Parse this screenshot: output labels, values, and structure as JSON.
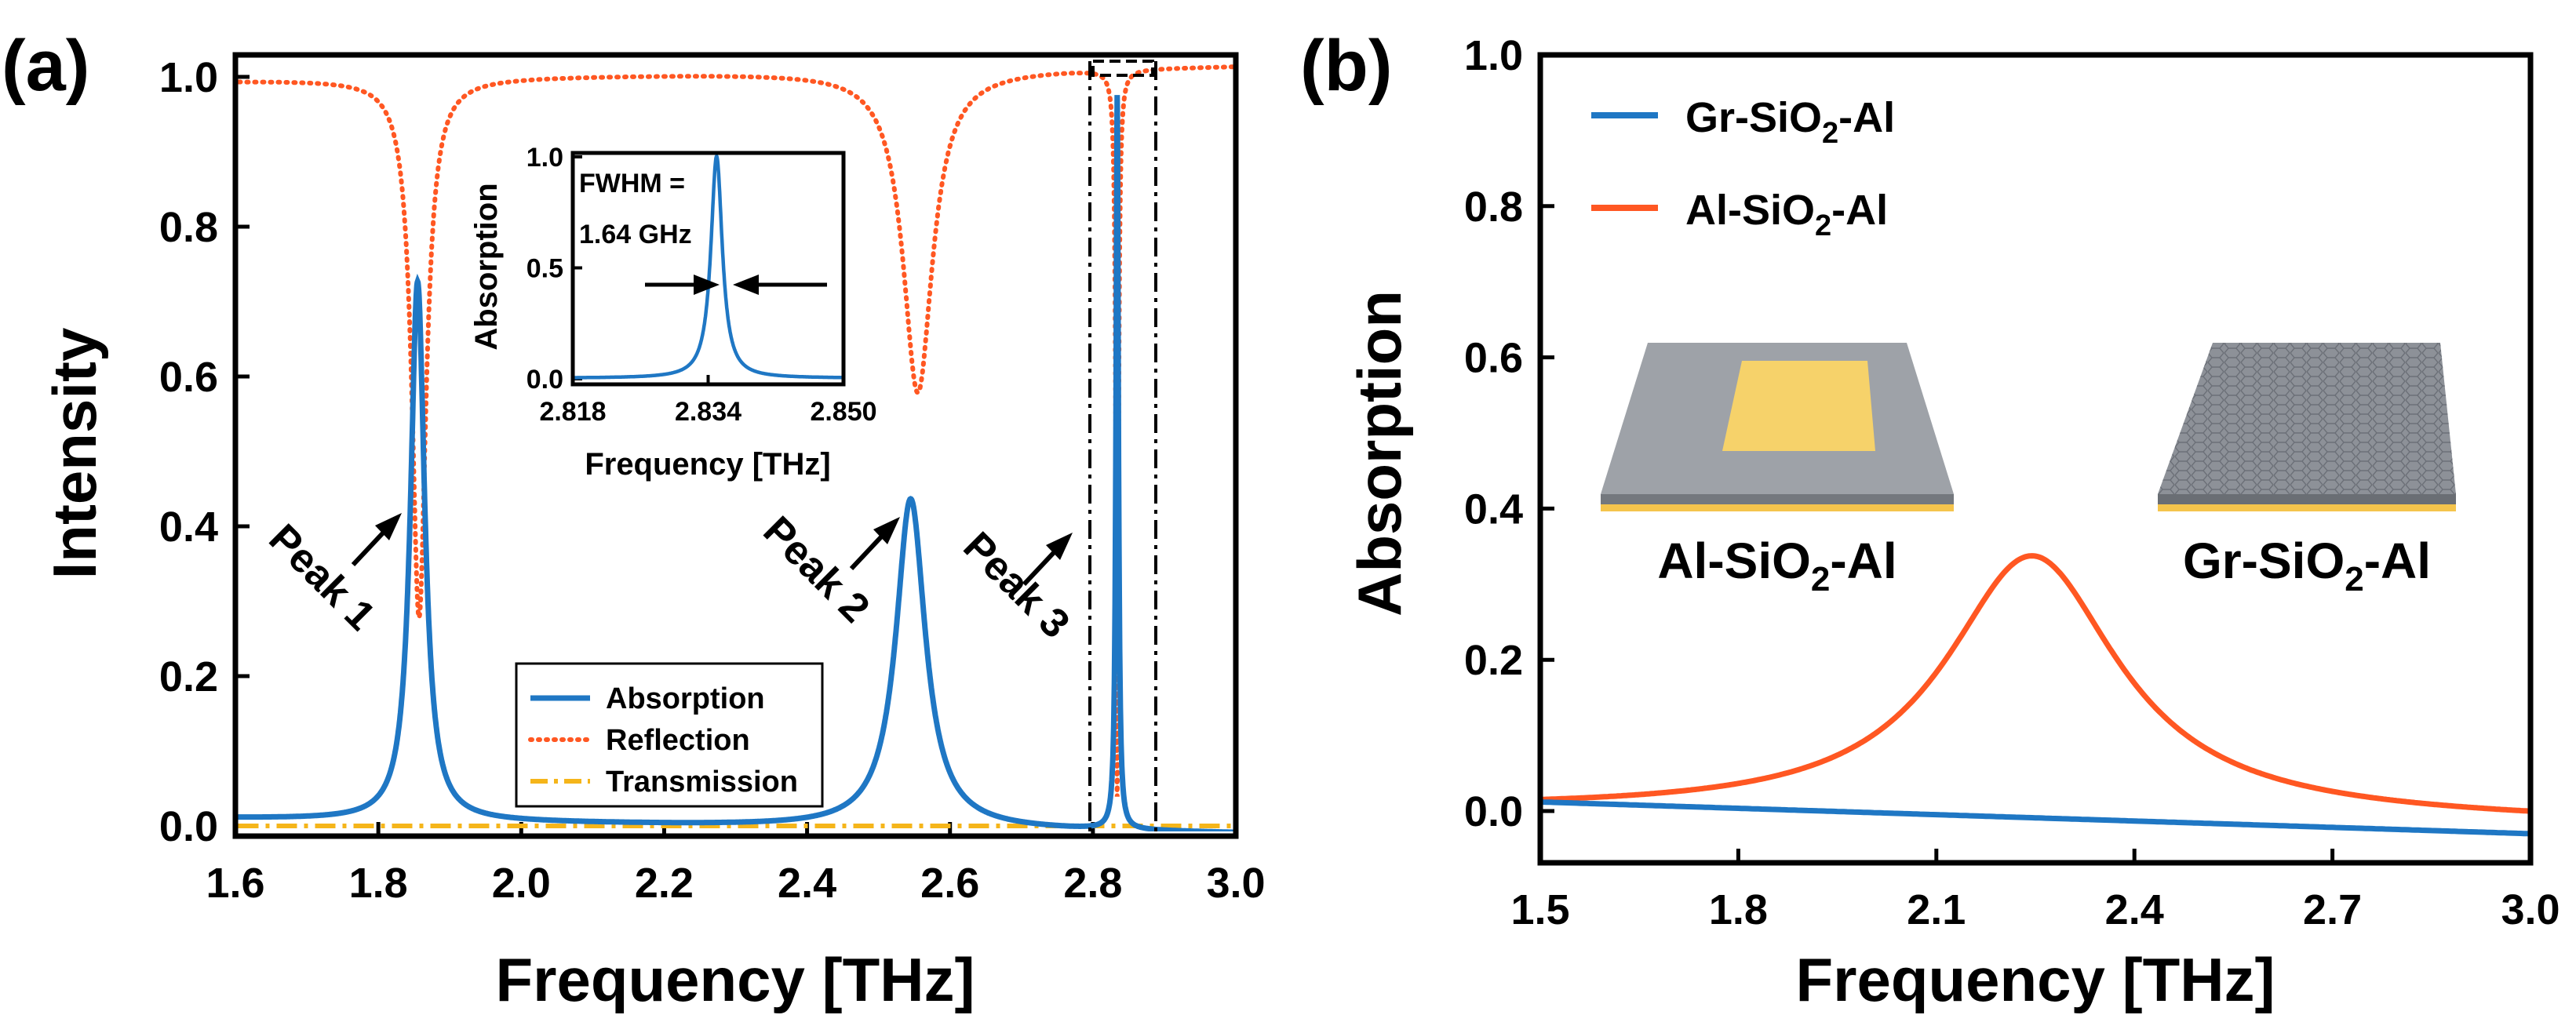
{
  "chart_data": [
    {
      "panel": "(a)",
      "type": "line",
      "xlabel": "Frequency [THz]",
      "ylabel": "Intensity",
      "xlim": [
        1.6,
        3.0
      ],
      "ylim": [
        0.0,
        1.0
      ],
      "xticks": [
        "1.6",
        "1.8",
        "2.0",
        "2.2",
        "2.4",
        "2.6",
        "2.8",
        "3.0"
      ],
      "yticks": [
        "0.0",
        "0.2",
        "0.4",
        "0.6",
        "0.8",
        "1.0"
      ],
      "legend": [
        "Absorption",
        "Reflection",
        "Transmission"
      ],
      "series": [
        {
          "name": "Absorption",
          "color": "#1f77c4",
          "style": "solid",
          "baseline": 0.01,
          "peaks": [
            [
              1.855,
              0.72,
              0.012
            ],
            [
              2.545,
              0.44,
              0.025
            ],
            [
              2.834,
              0.98,
              0.002
            ]
          ]
        },
        {
          "name": "Reflection",
          "color": "#ff5722",
          "style": "dotted",
          "baseline": 0.995,
          "dips": [
            [
              1.857,
              0.72,
              0.012
            ],
            [
              2.555,
              0.43,
              0.025
            ],
            [
              2.834,
              0.97,
              0.002
            ]
          ]
        },
        {
          "name": "Transmission",
          "color": "#f5b51a",
          "style": "dashdot",
          "value": 0.0
        }
      ],
      "annotations": [
        "Peak 1",
        "Peak 2",
        "Peak 3"
      ],
      "inset": {
        "xlabel": "Frequency [THz]",
        "ylabel": "Absorption",
        "xlim": [
          2.818,
          2.85
        ],
        "ylim": [
          0.0,
          1.0
        ],
        "xticks": [
          "2.818",
          "2.834",
          "2.850"
        ],
        "yticks": [
          "0.0",
          "0.5",
          "1.0"
        ],
        "fwhm_label_1": "FWHM =",
        "fwhm_label_2": "1.64 GHz",
        "peak": [
          2.835,
          1.0,
          0.00082
        ]
      }
    },
    {
      "panel": "(b)",
      "type": "line",
      "xlabel": "Frequency [THz]",
      "ylabel": "Absorption",
      "xlim": [
        1.5,
        3.0
      ],
      "ylim": [
        -0.05,
        1.0
      ],
      "xticks": [
        "1.5",
        "1.8",
        "2.1",
        "2.4",
        "2.7",
        "3.0"
      ],
      "yticks": [
        "0.0",
        "0.2",
        "0.4",
        "0.6",
        "0.8",
        "1.0"
      ],
      "series": [
        {
          "name": "Gr-SiO2-Al",
          "color": "#1f77c4",
          "start": 0.012,
          "end": -0.03
        },
        {
          "name": "Al-SiO2-Al",
          "color": "#ff5722",
          "peak": [
            2.245,
            0.345,
            0.16
          ],
          "offset": -0.015
        }
      ],
      "legend_1": {
        "pre": "Gr-SiO",
        "sub": "2",
        "post": "-Al"
      },
      "legend_2": {
        "pre": "Al-SiO",
        "sub": "2",
        "post": "-Al"
      },
      "sample_1": {
        "pre": "Al-SiO",
        "sub": "2",
        "post": "-Al"
      },
      "sample_2": {
        "pre": "Gr-SiO",
        "sub": "2",
        "post": "-Al"
      }
    }
  ]
}
